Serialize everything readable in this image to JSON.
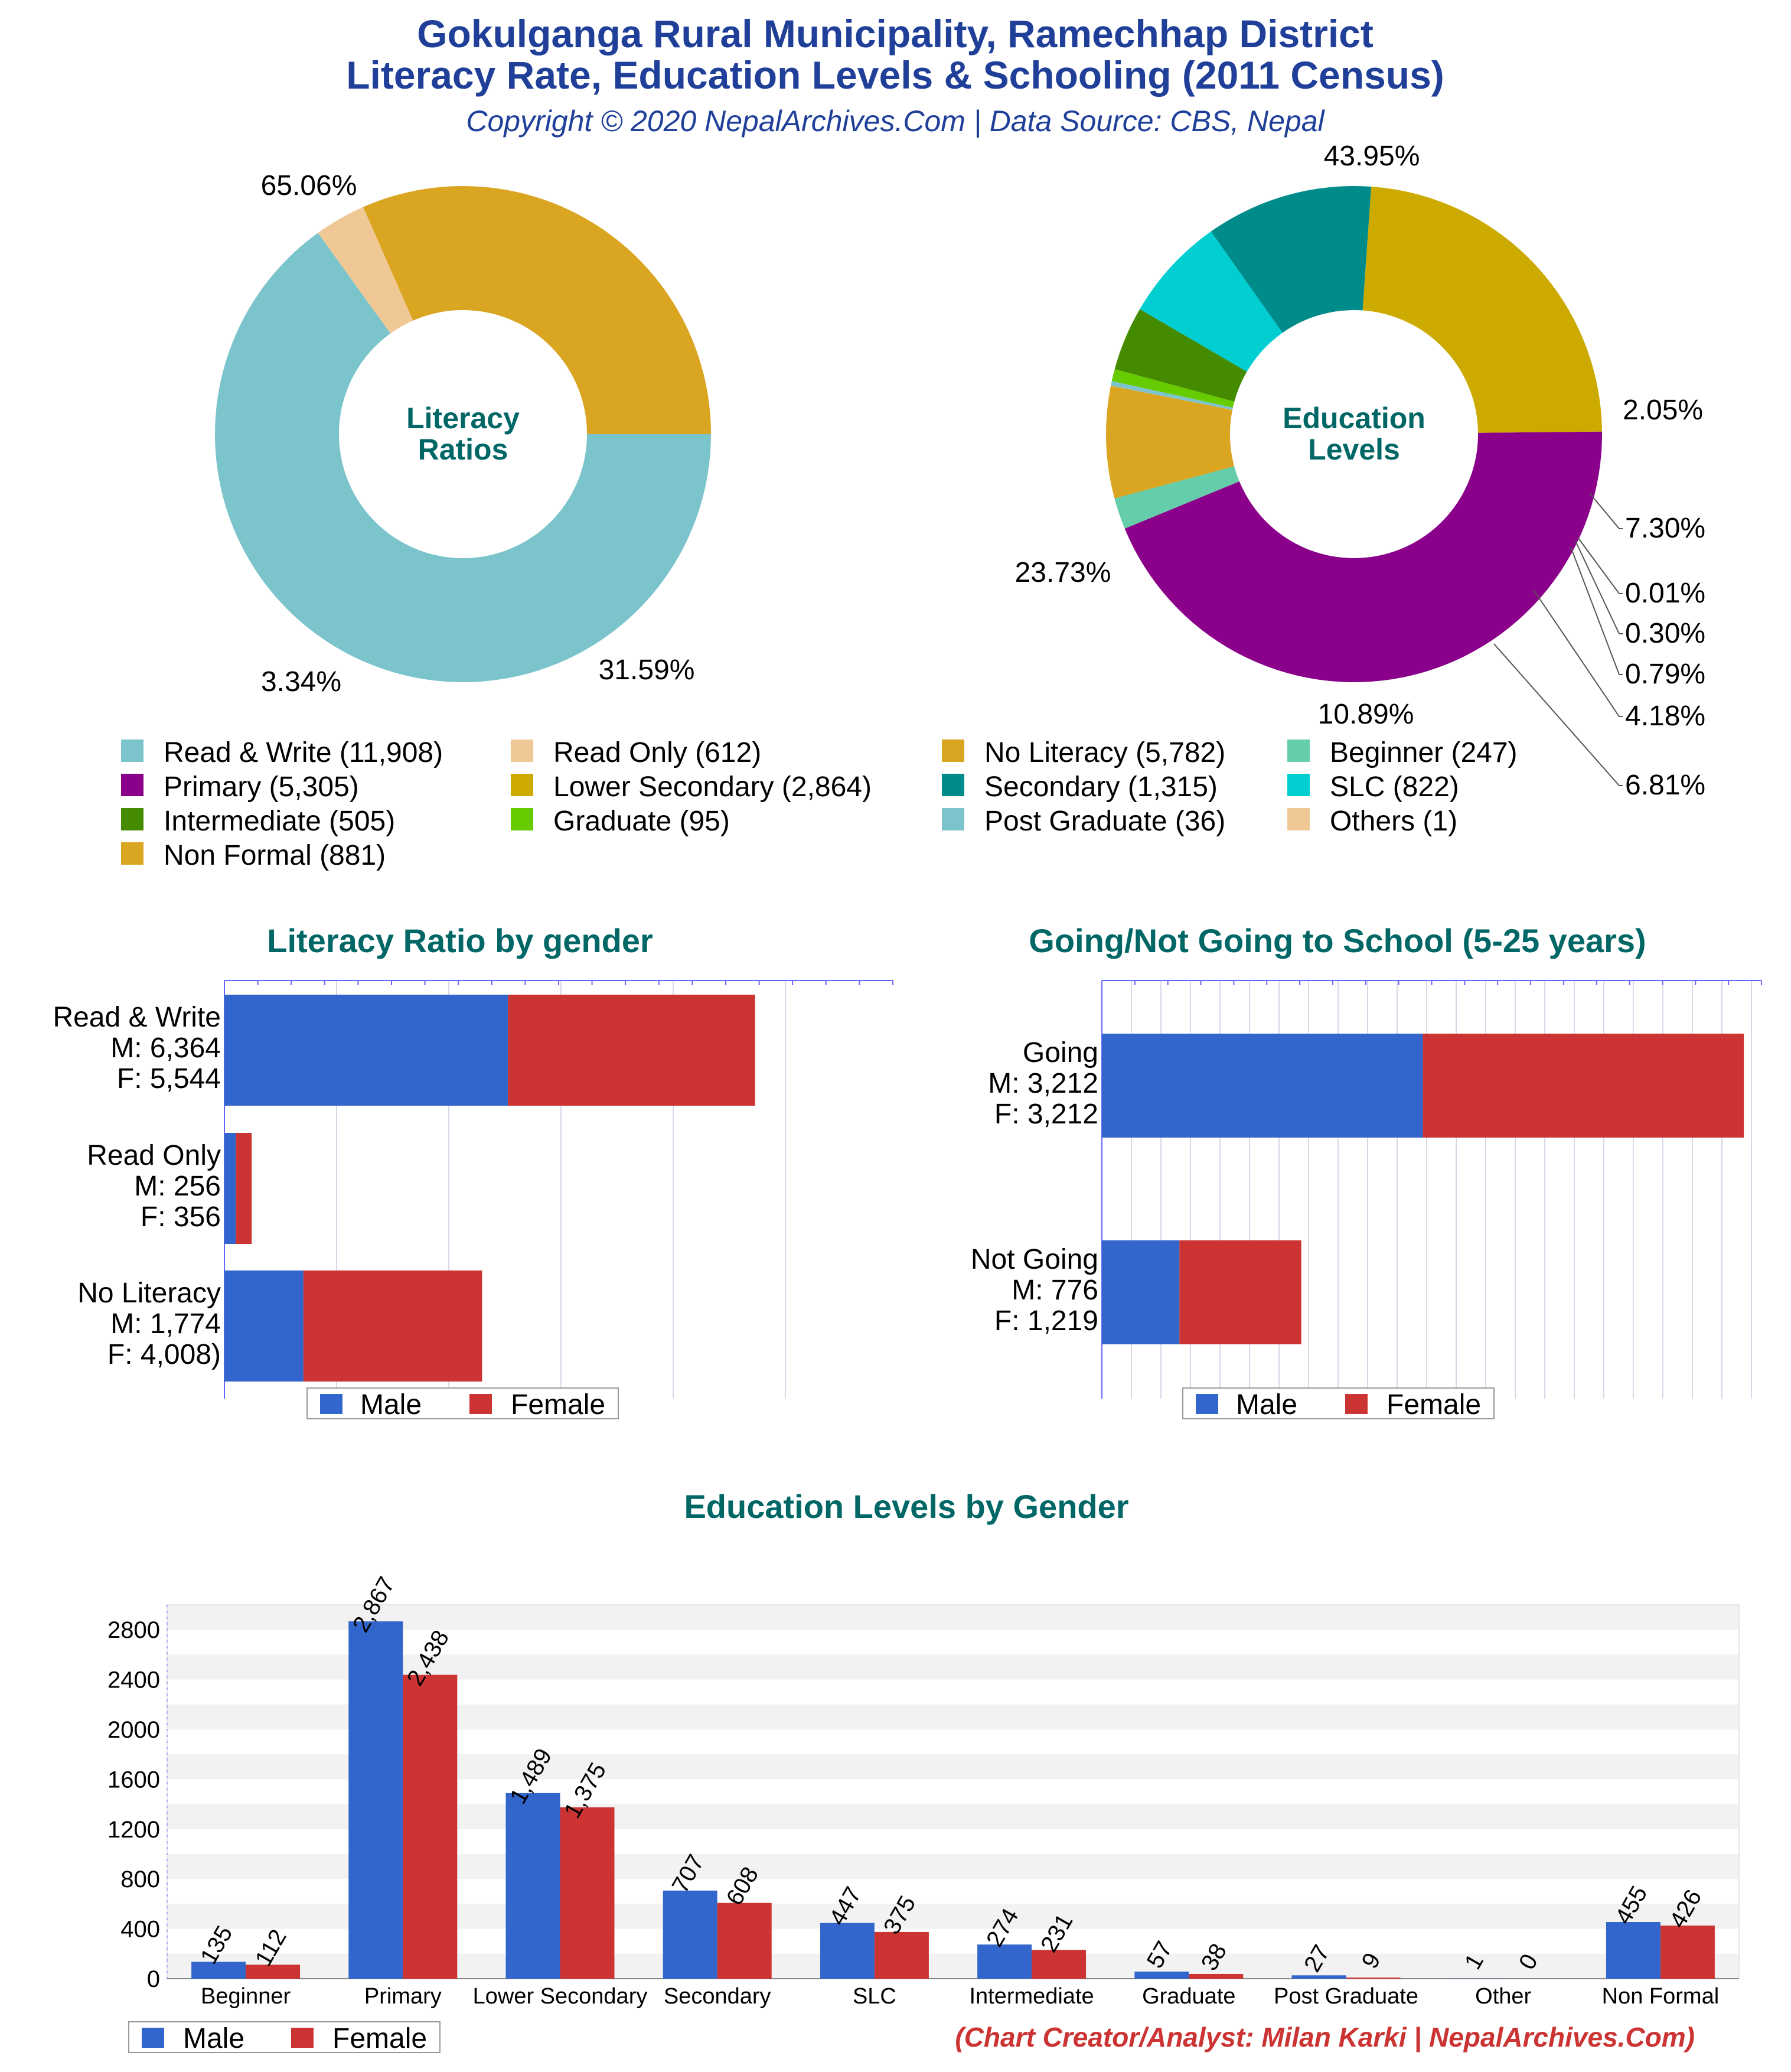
{
  "header": {
    "title_line1": "Gokulganga Rural Municipality, Ramechhap District",
    "title_line2": "Literacy Rate, Education Levels & Schooling (2011 Census)",
    "subtitle": "Copyright © 2020 NepalArchives.Com | Data Source: CBS, Nepal"
  },
  "footer": {
    "credit": "(Chart Creator/Analyst: Milan Karki | NepalArchives.Com)"
  },
  "colors": {
    "title": "#1f3f99",
    "section_title": "#006666",
    "male": "#3366cc",
    "female": "#cc3333",
    "credit": "#cc3333"
  },
  "chart_data": [
    {
      "type": "pie",
      "center_label": [
        "Literacy",
        "Ratios"
      ],
      "slices": [
        {
          "label": "Read & Write",
          "value": 11908,
          "percent": "65.06%",
          "color": "#7cc4cc"
        },
        {
          "label": "Read Only",
          "value": 612,
          "percent": "3.34%",
          "color": "#f0c896"
        },
        {
          "label": "No Literacy",
          "value": 5782,
          "percent": "31.59%",
          "color": "#daa520"
        }
      ]
    },
    {
      "type": "pie",
      "center_label": [
        "Education",
        "Levels"
      ],
      "slices": [
        {
          "label": "Primary",
          "value": 5305,
          "percent": "43.95%",
          "color": "#8b008b"
        },
        {
          "label": "Beginner",
          "value": 247,
          "percent": "2.05%",
          "color": "#66cdaa"
        },
        {
          "label": "Non Formal",
          "value": 881,
          "percent": "7.30%",
          "color": "#daa520"
        },
        {
          "label": "Others",
          "value": 1,
          "percent": "0.01%",
          "color": "#f0c896"
        },
        {
          "label": "Post Graduate",
          "value": 36,
          "percent": "0.30%",
          "color": "#7cc4cc"
        },
        {
          "label": "Graduate",
          "value": 95,
          "percent": "0.79%",
          "color": "#66cc00"
        },
        {
          "label": "Intermediate",
          "value": 505,
          "percent": "4.18%",
          "color": "#458b00"
        },
        {
          "label": "SLC",
          "value": 822,
          "percent": "6.81%",
          "color": "#00ced1"
        },
        {
          "label": "Secondary",
          "value": 1315,
          "percent": "10.89%",
          "color": "#008b8b"
        },
        {
          "label": "Lower Secondary",
          "value": 2864,
          "percent": "23.73%",
          "color": "#ccaa00"
        }
      ]
    },
    {
      "type": "bar",
      "orientation": "horizontal",
      "stacked": true,
      "title": "Literacy Ratio by gender",
      "categories": [
        {
          "lines": [
            "Read & Write",
            "M: 6,364",
            "F: 5,544"
          ]
        },
        {
          "lines": [
            "Read Only",
            "M: 256",
            "F: 356"
          ]
        },
        {
          "lines": [
            "No Literacy",
            "M: 1,774",
            "F: 4,008)"
          ]
        }
      ],
      "series": [
        {
          "name": "Male",
          "values": [
            6364,
            256,
            1774
          ]
        },
        {
          "name": "Female",
          "values": [
            5544,
            356,
            4008
          ]
        }
      ],
      "xlim": [
        0,
        15000
      ],
      "legend": "bottom"
    },
    {
      "type": "bar",
      "orientation": "horizontal",
      "stacked": true,
      "title": "Going/Not Going to School (5-25 years)",
      "categories": [
        {
          "lines": [
            "Going",
            "M: 3,212",
            "F: 3,212"
          ]
        },
        {
          "lines": [
            "Not Going",
            "M: 776",
            "F: 1,219"
          ]
        }
      ],
      "series": [
        {
          "name": "Male",
          "values": [
            3212,
            776
          ]
        },
        {
          "name": "Female",
          "values": [
            3212,
            1219
          ]
        }
      ],
      "xlim": [
        0,
        6600
      ],
      "legend": "bottom"
    },
    {
      "type": "bar",
      "orientation": "vertical",
      "title": "Education Levels by Gender",
      "categories": [
        "Beginner",
        "Primary",
        "Lower Secondary",
        "Secondary",
        "SLC",
        "Intermediate",
        "Graduate",
        "Post Graduate",
        "Other",
        "Non Formal"
      ],
      "series": [
        {
          "name": "Male",
          "values": [
            135,
            2867,
            1489,
            707,
            447,
            274,
            57,
            27,
            1,
            455
          ],
          "labels": [
            "135",
            "2,867",
            "1,489",
            "707",
            "447",
            "274",
            "57",
            "27",
            "1",
            "455"
          ]
        },
        {
          "name": "Female",
          "values": [
            112,
            2438,
            1375,
            608,
            375,
            231,
            38,
            9,
            0,
            426
          ],
          "labels": [
            "112",
            "2,438",
            "1,375",
            "608",
            "375",
            "231",
            "38",
            "9",
            "0",
            "426"
          ]
        }
      ],
      "yticks": [
        "0",
        "400",
        "800",
        "1200",
        "1600",
        "2000",
        "2400",
        "2800"
      ],
      "ylim": [
        0,
        3000
      ],
      "grid": true,
      "legend": "bottom-left"
    }
  ],
  "legend_grid": [
    {
      "label": "Read & Write (11,908)",
      "color": "#7cc4cc"
    },
    {
      "label": "Read Only (612)",
      "color": "#f0c896"
    },
    {
      "label": "No Literacy (5,782)",
      "color": "#daa520"
    },
    {
      "label": "Beginner (247)",
      "color": "#66cdaa"
    },
    {
      "label": "Primary (5,305)",
      "color": "#8b008b"
    },
    {
      "label": "Lower Secondary (2,864)",
      "color": "#ccaa00"
    },
    {
      "label": "Secondary (1,315)",
      "color": "#008b8b"
    },
    {
      "label": "SLC (822)",
      "color": "#00ced1"
    },
    {
      "label": "Intermediate (505)",
      "color": "#458b00"
    },
    {
      "label": "Graduate (95)",
      "color": "#66cc00"
    },
    {
      "label": "Post Graduate (36)",
      "color": "#7cc4cc"
    },
    {
      "label": "Others (1)",
      "color": "#f0c896"
    },
    {
      "label": "Non Formal (881)",
      "color": "#daa520"
    }
  ]
}
